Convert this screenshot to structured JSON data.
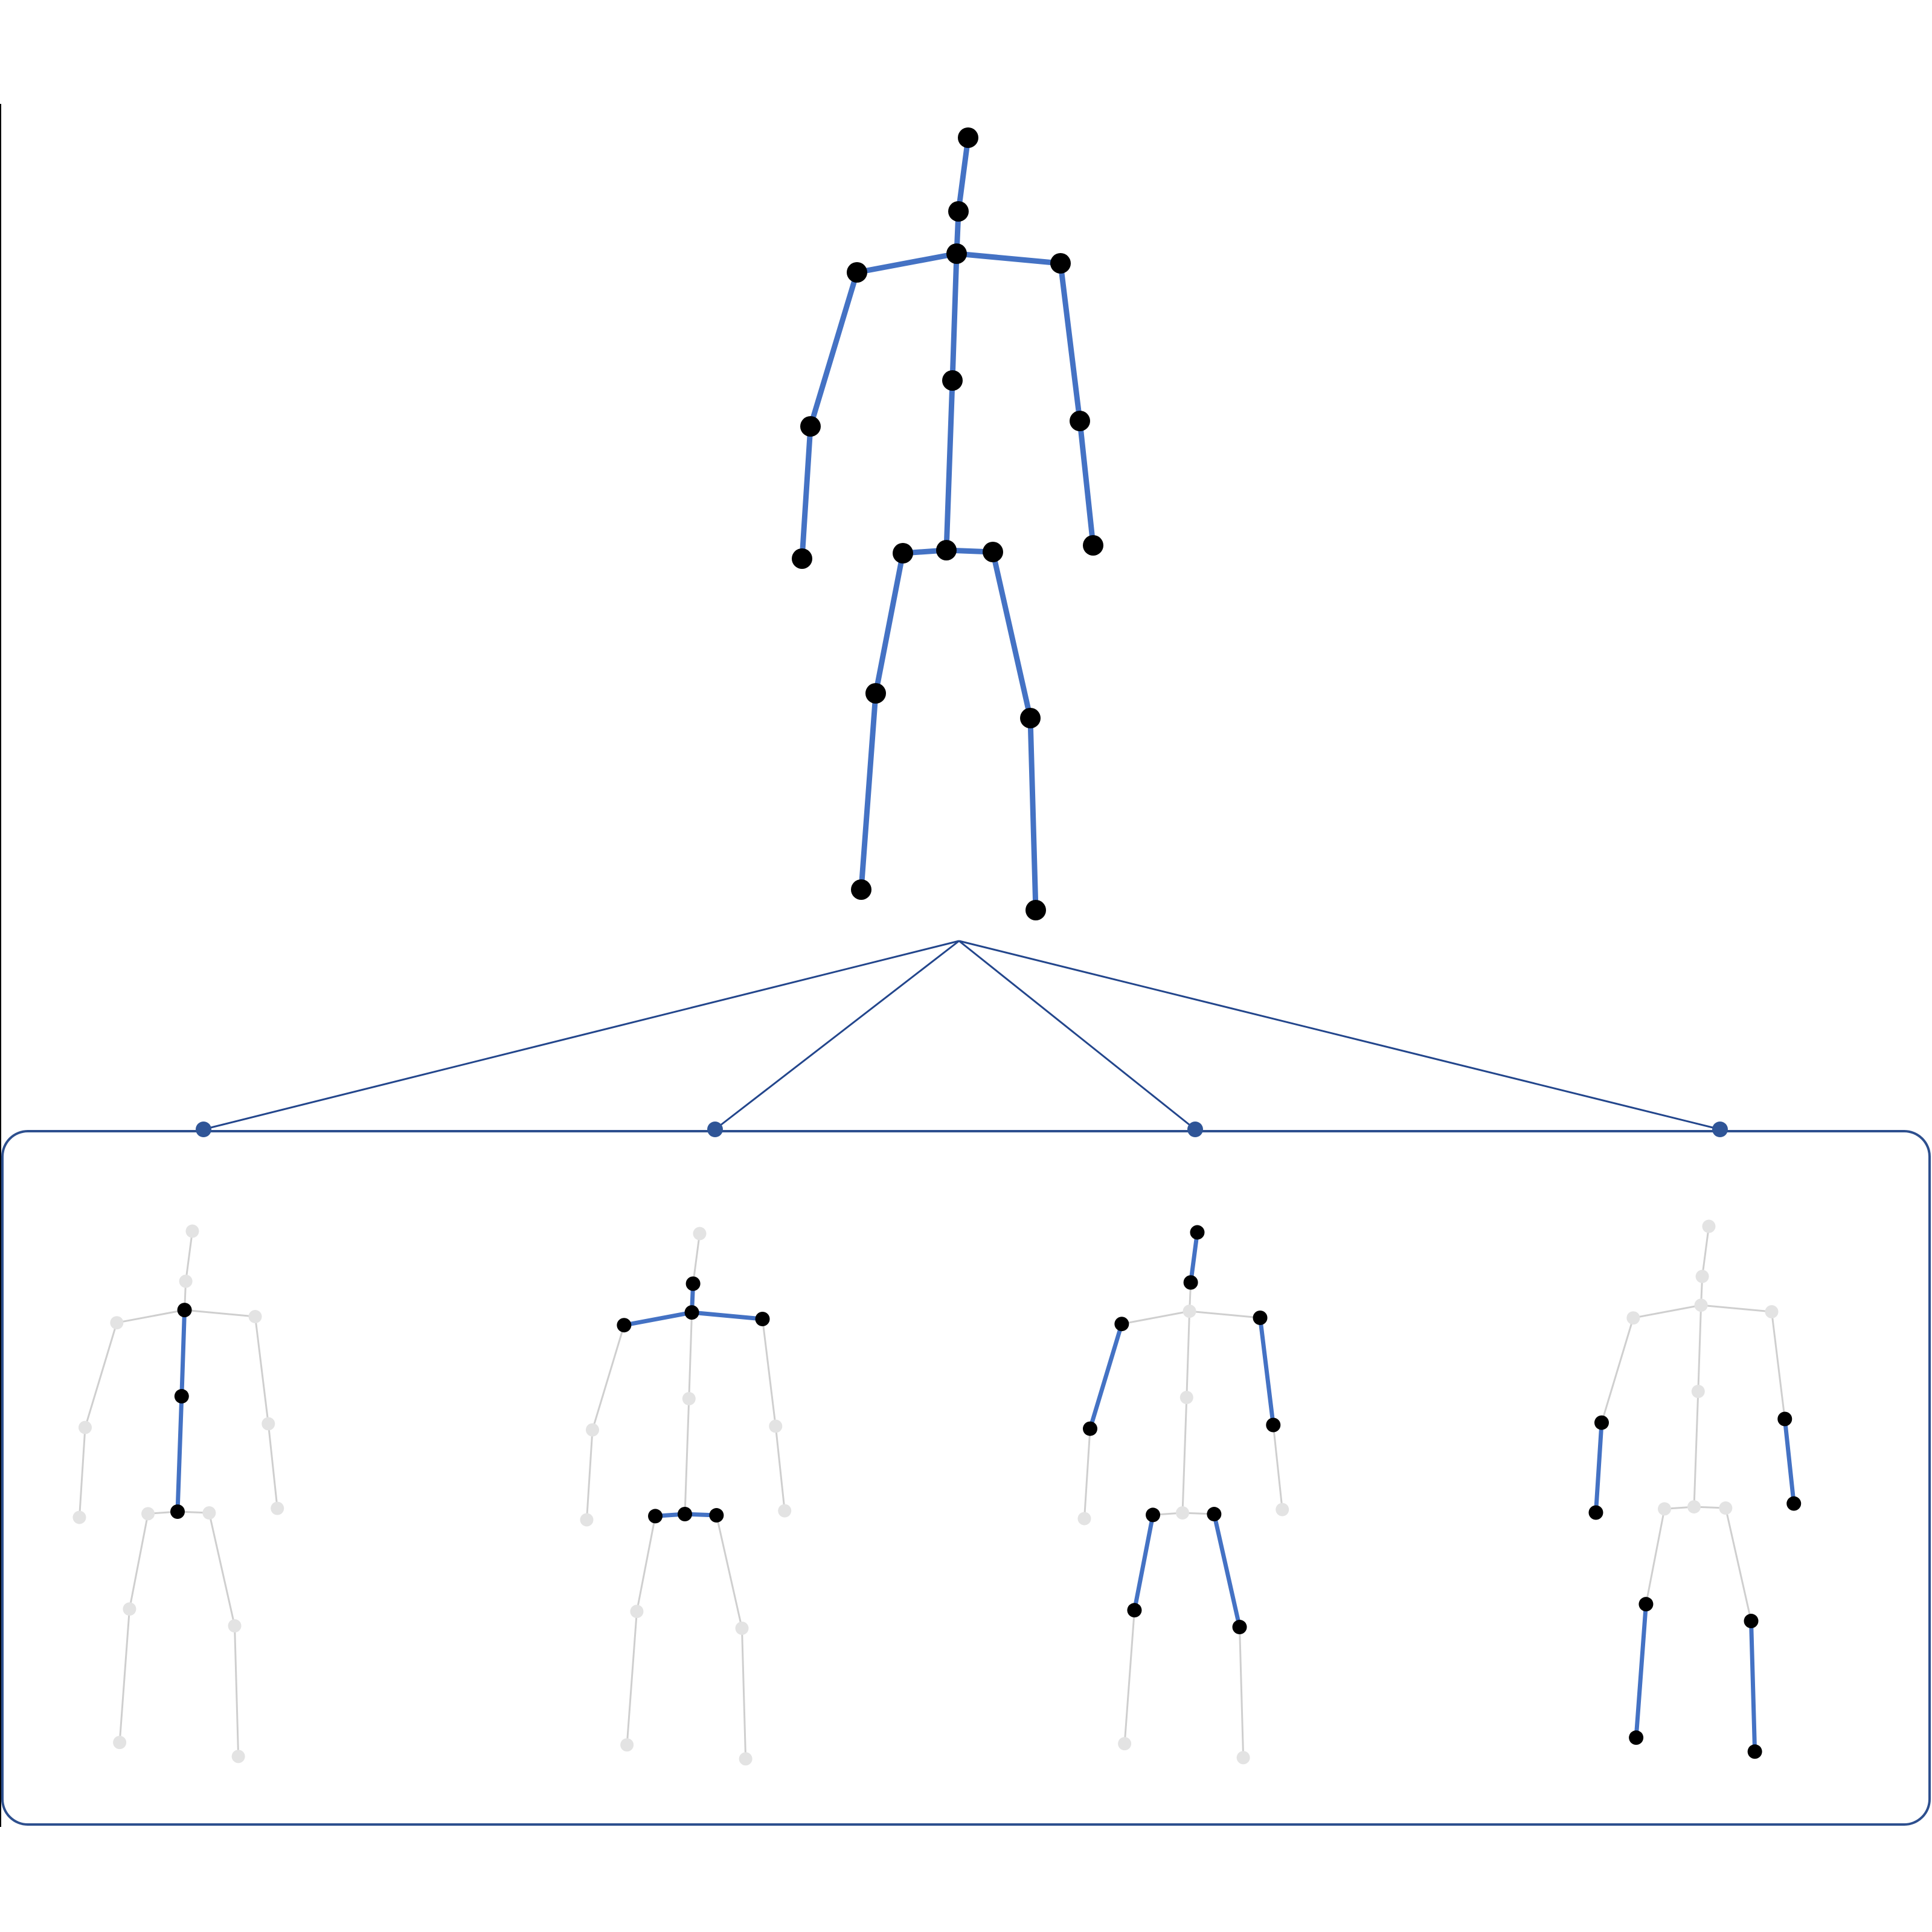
{
  "diagram": {
    "description_none": "",
    "colors": {
      "bone_active": "#4472c4",
      "bone_inactive": "#cfcfcf",
      "joint_active": "#000000",
      "joint_inactive": "#e3e3e3",
      "tree_line": "#23468c",
      "group_box": "#2d4f8e"
    },
    "skeleton_joints": [
      "head",
      "neck",
      "spine_top",
      "l_shoulder",
      "r_shoulder",
      "spine_mid",
      "l_elbow",
      "r_elbow",
      "l_wrist",
      "r_wrist",
      "hip_center",
      "l_hip",
      "r_hip",
      "l_knee",
      "r_knee",
      "l_ankle",
      "r_ankle"
    ],
    "full_skeleton": {
      "name": "full-skeleton",
      "active": "all"
    },
    "parts": [
      {
        "name": "part-spine",
        "active_joints": [
          "spine_top",
          "spine_mid",
          "hip_center"
        ]
      },
      {
        "name": "part-torso",
        "active_joints": [
          "neck",
          "spine_top",
          "l_shoulder",
          "r_shoulder",
          "hip_center",
          "l_hip",
          "r_hip"
        ]
      },
      {
        "name": "part-head-upper-limbs",
        "active_joints": [
          "head",
          "neck",
          "l_shoulder",
          "l_elbow",
          "r_shoulder",
          "r_elbow",
          "l_hip",
          "l_knee",
          "r_hip",
          "r_knee"
        ]
      },
      {
        "name": "part-distal-limbs",
        "active_joints": [
          "l_elbow",
          "l_wrist",
          "r_elbow",
          "r_wrist",
          "l_knee",
          "l_ankle",
          "r_knee",
          "r_ankle"
        ]
      }
    ]
  }
}
